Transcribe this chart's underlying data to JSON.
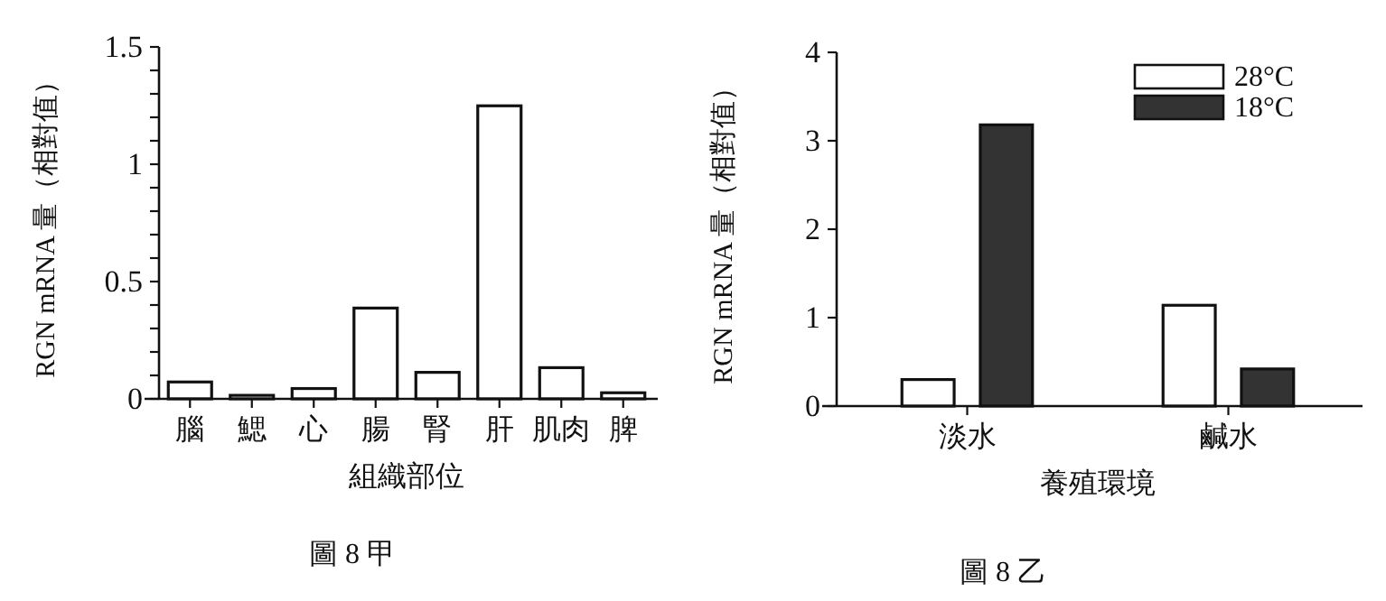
{
  "chart_data": [
    {
      "type": "bar",
      "categories": [
        "腦",
        "鰓",
        "心",
        "腸",
        "腎",
        "肝",
        "肌肉",
        "脾"
      ],
      "values": [
        0.072,
        0.015,
        0.044,
        0.387,
        0.113,
        1.249,
        0.133,
        0.026
      ],
      "color": "#ffffff",
      "ylim": [
        0,
        1.5
      ],
      "yticks": [
        0,
        {
          "value": 0.1,
          "label": null
        },
        {
          "value": 0.2,
          "label": null
        },
        {
          "value": 0.3,
          "label": null
        },
        {
          "value": 0.4,
          "label": null
        },
        0.5,
        {
          "value": 0.6,
          "label": null
        },
        {
          "value": 0.7,
          "label": null
        },
        {
          "value": 0.8,
          "label": null
        },
        {
          "value": 0.9,
          "label": null
        },
        1,
        {
          "value": 1.1,
          "label": null
        },
        {
          "value": 1.2,
          "label": null
        },
        {
          "value": 1.3,
          "label": null
        },
        {
          "value": 1.4,
          "label": null
        },
        1.5
      ],
      "xlabel": "組織部位",
      "ylabel": "RGN mRNA 量（相對值）",
      "annotations": [
        "圖 8 甲"
      ]
    },
    {
      "type": "bar",
      "categories": [
        "淡水",
        "鹹水"
      ],
      "series": [
        {
          "name": "28°C",
          "color": "#ffffff",
          "values": [
            0.3,
            1.14
          ]
        },
        {
          "name": "18°C",
          "color": "#333333",
          "values": [
            3.18,
            0.42
          ]
        }
      ],
      "ylim": [
        0,
        4
      ],
      "yticks": [
        0,
        1,
        2,
        3,
        4
      ],
      "xlabel": "養殖環境",
      "ylabel": "RGN mRNA 量（相對值）",
      "legend": "top right",
      "annotations": [
        "圖 8 乙"
      ]
    }
  ]
}
